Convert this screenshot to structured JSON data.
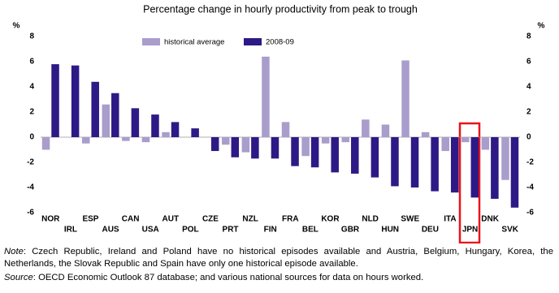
{
  "chart_data": {
    "type": "bar",
    "title": "Percentage change in hourly productivity from peak to trough",
    "y_unit": "%",
    "y2_unit": "%",
    "categories": [
      "NOR",
      "IRL",
      "ESP",
      "AUS",
      "CAN",
      "USA",
      "AUT",
      "POL",
      "CZE",
      "PRT",
      "NZL",
      "FIN",
      "FRA",
      "BEL",
      "KOR",
      "GBR",
      "NLD",
      "HUN",
      "SWE",
      "DEU",
      "ITA",
      "JPN",
      "DNK",
      "SVK"
    ],
    "series": [
      {
        "name": "historical average",
        "color": "#a99dcc",
        "values": [
          -1.0,
          null,
          -0.5,
          2.6,
          -0.3,
          -0.4,
          0.4,
          null,
          null,
          -0.6,
          -1.2,
          6.4,
          1.2,
          -1.5,
          -0.5,
          -0.4,
          1.4,
          1.0,
          6.1,
          0.4,
          -1.1,
          -0.4,
          -1.0,
          -3.4
        ]
      },
      {
        "name": "2008-09",
        "color": "#2d1a86",
        "values": [
          5.8,
          5.7,
          4.4,
          3.5,
          2.3,
          1.8,
          1.2,
          0.7,
          -1.1,
          -1.6,
          -1.7,
          -1.7,
          -2.3,
          -2.4,
          -2.8,
          -2.9,
          -3.2,
          -3.9,
          -4.0,
          -4.3,
          -4.4,
          -4.8,
          -4.9,
          -5.6
        ]
      }
    ],
    "ylim": [
      -6,
      8
    ],
    "yticks": [
      -6,
      -4,
      -2,
      0,
      2,
      4,
      6,
      8
    ],
    "y2lim": [
      -6,
      8
    ],
    "y2ticks": [
      -6,
      -4,
      -2,
      0,
      2,
      4,
      6,
      8
    ]
  },
  "notes": {
    "note_label": "Note",
    "note_text": ": Czech Republic, Ireland and Poland have no historical episodes available and Austria, Belgium, Hungary, Korea, the Netherlands, the Slovak Republic and Spain have only one historical episode available.",
    "source_label": "Source",
    "source_text": ": OECD Economic Outlook 87 database; and various national sources for data on hours worked."
  }
}
